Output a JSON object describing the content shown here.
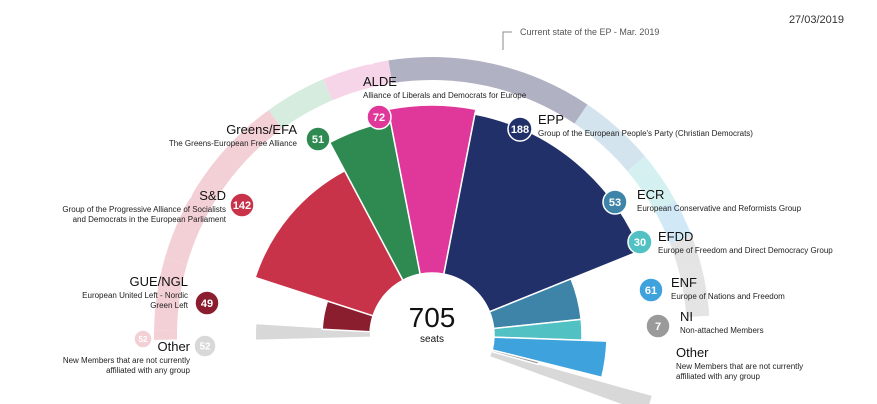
{
  "date": "27/03/2019",
  "current_state_note": "Current state of the EP - Mar. 2019",
  "chart_data": {
    "type": "semicircle-parliament",
    "total": "705",
    "total_label": "seats",
    "groups": [
      {
        "short": "GUE/NGL",
        "desc": [
          "European United Left - Nordic",
          "Green Left"
        ],
        "new_seats": 49,
        "current_seats": 52,
        "color": "#8b1e2e",
        "ring_color": "#f3d0d6"
      },
      {
        "short": "S&D",
        "desc": [
          "Group of the Progressive Alliance of Socialists",
          "and Democrats in the European Parliament"
        ],
        "new_seats": 142,
        "current_seats": 186,
        "color": "#c9334a",
        "ring_color": "#f3d0d6"
      },
      {
        "short": "Greens/EFA",
        "desc": [
          "The Greens-European Free Alliance"
        ],
        "new_seats": 51,
        "current_seats": 52,
        "color": "#2f8a52",
        "ring_color": "#d6ecde"
      },
      {
        "short": "ALDE",
        "desc": [
          "Alliance of Liberals and Democrats for Europe"
        ],
        "new_seats": 72,
        "current_seats": 68,
        "color": "#e0379b",
        "ring_color": "#f7d5e8"
      },
      {
        "short": "EPP",
        "desc": [
          "Group of the European People's Party (Christian Democrats)"
        ],
        "new_seats": 188,
        "current_seats": 217,
        "color": "#22306a",
        "ring_color": "#b0b1c3"
      },
      {
        "short": "ECR",
        "desc": [
          "European Conservative and Reformists Group"
        ],
        "new_seats": 53,
        "current_seats": 75,
        "color": "#3d84a8",
        "ring_color": "#d4e4ee"
      },
      {
        "short": "EFDD",
        "desc": [
          "Europe of Freedom and Direct Democracy Group"
        ],
        "new_seats": 30,
        "current_seats": 41,
        "color": "#52c1c3",
        "ring_color": "#d4f0f0"
      },
      {
        "short": "ENF",
        "desc": [
          "Europe of Nations and Freedom"
        ],
        "new_seats": 61,
        "current_seats": 37,
        "color": "#3ea2dc",
        "ring_color": "#d1e8f6"
      },
      {
        "short": "NI",
        "desc": [
          "Non-attached Members"
        ],
        "new_seats": 7,
        "current_seats": 21,
        "color": "#9a9a9a",
        "ring_color": "#e4e4e4"
      }
    ],
    "other_left": {
      "short": "Other",
      "desc": [
        "New Members that are not currently",
        "affiliated with any group"
      ],
      "new_seats": 52,
      "current_seats": 52
    },
    "other_right": {
      "short": "Other",
      "desc": [
        "New Members that are not currently",
        "affiliated with any group"
      ],
      "new_seats": 21,
      "current_seats": 21
    }
  }
}
